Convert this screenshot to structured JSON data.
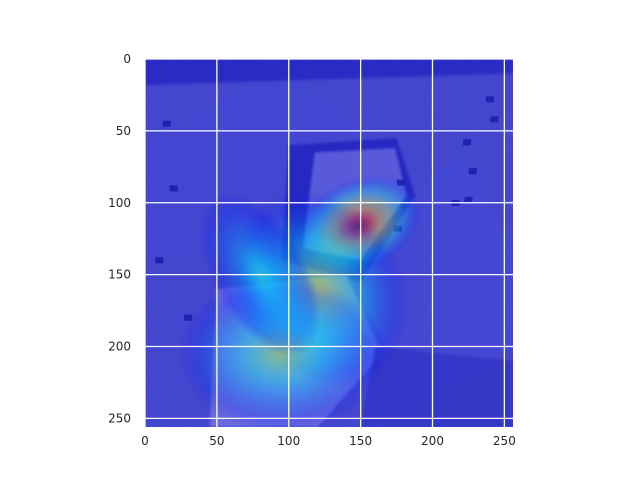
{
  "chart_data": {
    "type": "heatmap",
    "title": "",
    "xlabel": "",
    "ylabel": "",
    "description_note": "",
    "xlim": [
      0,
      256
    ],
    "ylim": [
      256,
      0
    ],
    "x_ticks": [
      0,
      50,
      100,
      150,
      200,
      250
    ],
    "y_ticks": [
      0,
      50,
      100,
      150,
      200,
      250
    ],
    "x_tick_labels": [
      "0",
      "50",
      "100",
      "150",
      "200",
      "250"
    ],
    "y_tick_labels": [
      "0",
      "50",
      "100",
      "150",
      "200",
      "250"
    ],
    "grid": true,
    "grid_color": "#ffffff",
    "colormap": "jet",
    "hotspot": {
      "x": 148,
      "y": 118,
      "peak_value": 1.0
    },
    "heat_blobs": [
      {
        "x": 148,
        "y": 116,
        "sx": 26,
        "sy": 18,
        "rot": -25,
        "w": 1.0
      },
      {
        "x": 122,
        "y": 160,
        "sx": 32,
        "sy": 40,
        "rot": -30,
        "w": 0.55
      },
      {
        "x": 95,
        "y": 205,
        "sx": 40,
        "sy": 30,
        "rot": 0,
        "w": 0.5
      },
      {
        "x": 80,
        "y": 150,
        "sx": 18,
        "sy": 35,
        "rot": -30,
        "w": 0.35
      }
    ],
    "colors": {
      "cold": "#2a2ad8",
      "hot": "#d7261a",
      "axis_text": "#262626"
    }
  }
}
